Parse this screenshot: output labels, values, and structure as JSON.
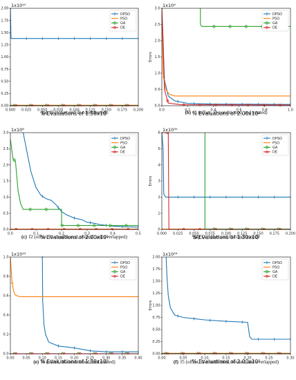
{
  "colors": {
    "DPSO": "#1f77b4",
    "PSO": "#ff7f0e",
    "GA": "#2ca02c",
    "DE": "#d62728"
  },
  "chart_data": [
    {
      "type": "line",
      "panel": "a",
      "caption_label": "(a)",
      "caption_text": "f0 (offset and ill-conditioned)",
      "exponent_label": "1x10¹⁰",
      "xlabel": "% Evaluations of 1.58x10⁵",
      "ylabel": "",
      "xlim": [
        0,
        0.2
      ],
      "ylim": [
        0,
        2.0
      ],
      "xticks": [
        "0.000",
        "0.025",
        "0.050",
        "0.075",
        "0.100",
        "0.125",
        "0.150",
        "0.175",
        "0.200"
      ],
      "yticks": [
        "0.00",
        "0.25",
        "0.50",
        "0.75",
        "1.00",
        "1.25",
        "1.50",
        "1.75",
        "2.00"
      ],
      "legend": [
        "DPSO",
        "PSO",
        "GA",
        "DE"
      ],
      "series": [
        {
          "name": "DPSO",
          "x": [
            0,
            0.001,
            0.2
          ],
          "y": [
            2.0,
            1.38,
            1.38
          ]
        },
        {
          "name": "PSO",
          "x": [
            0,
            0.2
          ],
          "y": [
            0.01,
            0.01
          ]
        },
        {
          "name": "GA",
          "x": [
            0,
            0.2
          ],
          "y": [
            0.005,
            0.005
          ]
        },
        {
          "name": "DE",
          "x": [
            0,
            0.2
          ],
          "y": [
            0.0,
            0.0
          ]
        }
      ]
    },
    {
      "type": "line",
      "panel": "b",
      "caption_label": "(b)",
      "caption_text": "f1 (offset, ill-conditioned, and rotated)",
      "exponent_label": "1x10⁹",
      "xlabel": "% Evaluations of 2.00x10⁵",
      "ylabel": "Errors",
      "xlim": [
        0,
        1.0
      ],
      "ylim": [
        0,
        3.0
      ],
      "xticks": [
        "0.0",
        "0.2",
        "0.4",
        "0.6",
        "0.8",
        "1.0"
      ],
      "yticks": [
        "0.0",
        "0.5",
        "1.0",
        "1.5",
        "2.0",
        "2.5",
        "3.0"
      ],
      "legend": [
        "DPSO",
        "PSO",
        "GA",
        "DE"
      ],
      "series": [
        {
          "name": "DPSO",
          "x": [
            0,
            0.01,
            0.02,
            0.05,
            0.1,
            0.2,
            0.4,
            1.0
          ],
          "y": [
            3.0,
            2.0,
            0.8,
            0.3,
            0.15,
            0.07,
            0.05,
            0.04
          ]
        },
        {
          "name": "PSO",
          "x": [
            0,
            0.01,
            0.03,
            0.06,
            0.1,
            1.0
          ],
          "y": [
            3.0,
            1.0,
            0.5,
            0.35,
            0.3,
            0.3
          ]
        },
        {
          "name": "GA",
          "x": [
            0.3,
            0.3,
            0.31,
            1.0
          ],
          "y": [
            3.0,
            2.5,
            2.44,
            2.44
          ]
        },
        {
          "name": "DE",
          "x": [
            0,
            0.01,
            0.02,
            0.05,
            0.15,
            1.0
          ],
          "y": [
            3.0,
            1.9,
            0.5,
            0.08,
            0.03,
            0.02
          ]
        }
      ]
    },
    {
      "type": "line",
      "panel": "c",
      "caption_label": "(c)",
      "caption_text": "f2 (offset, ill-conditioned, rotated, and overlapped)",
      "exponent_label": "1x10⁸",
      "xlabel": "% Evaluations of 2.00x10⁵",
      "ylabel": "Errors",
      "xlim": [
        0,
        0.5
      ],
      "ylim": [
        0,
        3.0
      ],
      "xticks": [
        "0.0",
        "0.1",
        "0.2",
        "0.3",
        "0.4",
        "0.5"
      ],
      "yticks": [
        "0.0",
        "0.5",
        "1.0",
        "1.5",
        "2.0",
        "2.5",
        "3.0"
      ],
      "legend": [
        "DPSO",
        "PSO",
        "GA",
        "DE"
      ],
      "series": [
        {
          "name": "DPSO",
          "x": [
            0.05,
            0.06,
            0.08,
            0.1,
            0.12,
            0.14,
            0.16,
            0.18,
            0.2,
            0.22,
            0.25,
            0.28,
            0.3,
            0.32,
            0.35,
            0.38,
            0.4,
            0.45,
            0.5
          ],
          "y": [
            3.0,
            2.6,
            1.8,
            1.3,
            1.05,
            0.95,
            0.9,
            0.75,
            0.55,
            0.45,
            0.35,
            0.3,
            0.22,
            0.2,
            0.15,
            0.12,
            0.1,
            0.08,
            0.07
          ]
        },
        {
          "name": "PSO",
          "x": [
            0,
            0.5
          ],
          "y": [
            0.01,
            0.01
          ]
        },
        {
          "name": "GA",
          "x": [
            0,
            0.01,
            0.02,
            0.03,
            0.04,
            0.05,
            0.2,
            0.2,
            0.5
          ],
          "y": [
            2.8,
            2.2,
            2.1,
            1.2,
            0.8,
            0.62,
            0.62,
            0.12,
            0.12
          ]
        },
        {
          "name": "DE",
          "x": [
            0,
            0.5
          ],
          "y": [
            0.0,
            0.0
          ]
        }
      ]
    },
    {
      "type": "line",
      "panel": "d",
      "caption_label": "(d)",
      "caption_text": "f3 (offset and ill-conditioned)",
      "exponent_label": "1x10³⁰",
      "xlabel": "% Evaluations of 1.30x10⁵",
      "ylabel": "Errors",
      "xlim": [
        0,
        0.2
      ],
      "ylim": [
        0,
        6
      ],
      "xticks": [
        "0.000",
        "0.025",
        "0.050",
        "0.075",
        "0.100",
        "0.125",
        "0.150",
        "0.175",
        "0.200"
      ],
      "yticks": [
        "0",
        "1",
        "2",
        "3",
        "4",
        "5",
        "6"
      ],
      "legend": [
        "DPSO",
        "PSO",
        "GA",
        "DE"
      ],
      "series": [
        {
          "name": "DPSO",
          "x": [
            0,
            0.002,
            0.003,
            0.006,
            0.2
          ],
          "y": [
            6.0,
            5.0,
            2.2,
            2.0,
            2.0
          ]
        },
        {
          "name": "PSO",
          "x": [
            0,
            0.2
          ],
          "y": [
            0.02,
            0.02
          ]
        },
        {
          "name": "GA",
          "x": [
            0.067,
            0.067,
            0.0675,
            0.2
          ],
          "y": [
            6.0,
            0.05,
            0.02,
            0.02
          ]
        },
        {
          "name": "DE",
          "x": [
            0,
            0.01,
            0.011,
            0.2
          ],
          "y": [
            6.0,
            6.0,
            0.0,
            0.0
          ]
        }
      ]
    },
    {
      "type": "line",
      "panel": "e",
      "caption_label": "(e)",
      "caption_text": "f4 (offset, ill-conditioned, and rotated)",
      "exponent_label": "1x10¹²",
      "xlabel": "% Evaluations of 1.89x10⁵",
      "ylabel": "Errors",
      "xlim": [
        0,
        0.4
      ],
      "ylim": [
        0,
        1.0
      ],
      "xticks": [
        "0.00",
        "0.05",
        "0.10",
        "0.15",
        "0.20",
        "0.25",
        "0.30",
        "0.35",
        "0.40"
      ],
      "yticks": [
        "0.0",
        "0.2",
        "0.4",
        "0.6",
        "0.8",
        "1.0"
      ],
      "legend": [
        "DPSO",
        "PSO",
        "GA",
        "DE"
      ],
      "series": [
        {
          "name": "DPSO",
          "x": [
            0.1,
            0.101,
            0.105,
            0.11,
            0.12,
            0.15,
            0.2,
            0.25,
            0.3,
            0.35,
            0.4
          ],
          "y": [
            1.0,
            0.55,
            0.3,
            0.2,
            0.12,
            0.08,
            0.06,
            0.03,
            0.02,
            0.02,
            0.02
          ]
        },
        {
          "name": "PSO",
          "x": [
            0,
            0.005,
            0.01,
            0.015,
            0.02,
            0.03,
            0.4
          ],
          "y": [
            1.0,
            0.75,
            0.65,
            0.61,
            0.6,
            0.59,
            0.59
          ]
        },
        {
          "name": "GA",
          "x": [
            0,
            0.4
          ],
          "y": [
            0.0,
            0.0
          ]
        },
        {
          "name": "DE",
          "x": [
            0,
            0.4
          ],
          "y": [
            0.0,
            0.0
          ]
        }
      ]
    },
    {
      "type": "line",
      "panel": "f",
      "caption_label": "(f)",
      "caption_text": "f5 (offset, ill-conditioned, rotated, and overlapped)",
      "exponent_label": "1x10²⁴",
      "xlabel": "% Evaluations of 2.00x10⁵",
      "ylabel": "Errors",
      "xlim": [
        0,
        0.3
      ],
      "ylim": [
        0,
        2.0
      ],
      "xticks": [
        "0.00",
        "0.05",
        "0.10",
        "0.15",
        "0.20",
        "0.25",
        "0.30"
      ],
      "yticks": [
        "0.00",
        "0.25",
        "0.50",
        "0.75",
        "1.00",
        "1.25",
        "1.50",
        "1.75",
        "2.00"
      ],
      "legend": [
        "DPSO",
        "PSO",
        "GA",
        "DE"
      ],
      "series": [
        {
          "name": "DPSO",
          "x": [
            0.01,
            0.012,
            0.015,
            0.02,
            0.03,
            0.05,
            0.08,
            0.1,
            0.15,
            0.2,
            0.205,
            0.21,
            0.3
          ],
          "y": [
            2.0,
            1.6,
            1.2,
            0.95,
            0.8,
            0.75,
            0.72,
            0.7,
            0.67,
            0.65,
            0.35,
            0.3,
            0.3
          ]
        },
        {
          "name": "PSO",
          "x": [
            0,
            0.3
          ],
          "y": [
            0.01,
            0.01
          ]
        },
        {
          "name": "GA",
          "x": [
            0,
            0.3
          ],
          "y": [
            0.005,
            0.005
          ]
        },
        {
          "name": "DE",
          "x": [
            0,
            0.3
          ],
          "y": [
            0.0,
            0.0
          ]
        }
      ]
    }
  ]
}
